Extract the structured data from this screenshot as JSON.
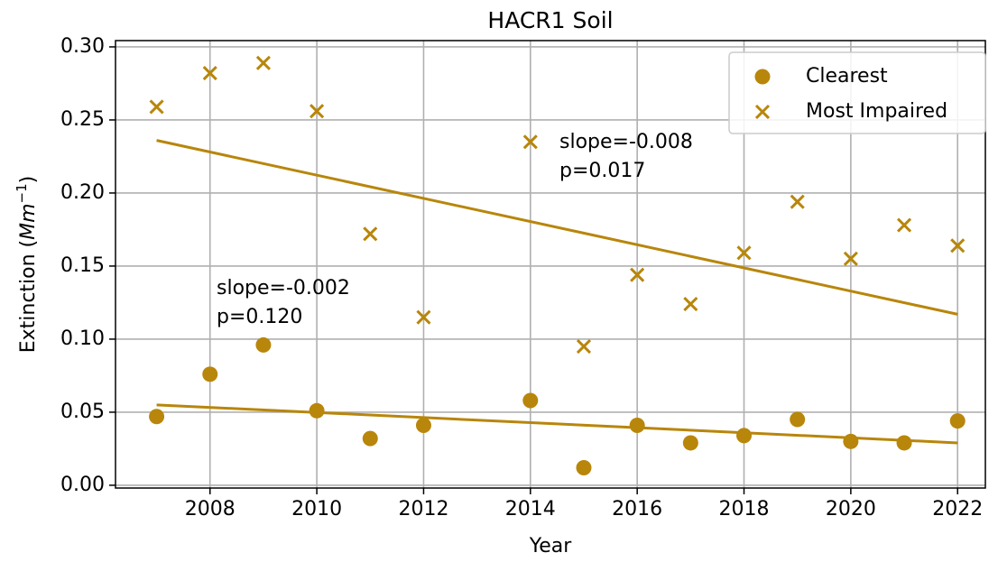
{
  "chart_data": {
    "type": "scatter",
    "title": "HACR1 Soil",
    "xlabel": "Year",
    "ylabel": [
      "Extinction (",
      "Mm",
      "−1",
      ")"
    ],
    "xlim": [
      2006.23,
      2022.52
    ],
    "ylim": [
      -0.0019,
      0.3043
    ],
    "xticks": [
      2008,
      2010,
      2012,
      2014,
      2016,
      2018,
      2020,
      2022
    ],
    "yticks": [
      {
        "value": 0,
        "label": "0.00"
      },
      {
        "value": 0.05,
        "label": "0.05"
      },
      {
        "value": 0.1,
        "label": "0.10"
      },
      {
        "value": 0.15,
        "label": "0.15"
      },
      {
        "value": 0.2,
        "label": "0.20"
      },
      {
        "value": 0.25,
        "label": "0.25"
      },
      {
        "value": 0.3,
        "label": "0.30"
      }
    ],
    "grid": true,
    "legend": "upper right",
    "series": [
      {
        "name": "Clearest",
        "color": "#b8860b",
        "marker": "circle",
        "x": [
          2007,
          2008,
          2009,
          2010,
          2011,
          2012,
          2014,
          2015,
          2016,
          2017,
          2018,
          2019,
          2020,
          2021,
          2022
        ],
        "values": [
          0.047,
          0.076,
          0.096,
          0.051,
          0.032,
          0.041,
          0.058,
          0.012,
          0.041,
          0.029,
          0.034,
          0.045,
          0.03,
          0.029,
          0.044
        ],
        "trend": {
          "x": [
            2007,
            2022
          ],
          "values": [
            0.055,
            0.029
          ]
        },
        "annotation": [
          "slope=-0.002",
          "p=0.120"
        ]
      },
      {
        "name": "Most Impaired",
        "color": "#b8860b",
        "marker": "x",
        "x": [
          2007,
          2008,
          2009,
          2010,
          2011,
          2012,
          2014,
          2015,
          2016,
          2017,
          2018,
          2019,
          2020,
          2021,
          2022
        ],
        "values": [
          0.259,
          0.282,
          0.289,
          0.256,
          0.172,
          0.115,
          0.235,
          0.095,
          0.144,
          0.124,
          0.159,
          0.194,
          0.155,
          0.178,
          0.164
        ],
        "trend": {
          "x": [
            2007,
            2022
          ],
          "values": [
            0.236,
            0.117
          ]
        },
        "annotation": [
          "slope=-0.008",
          "p=0.017"
        ]
      }
    ]
  }
}
